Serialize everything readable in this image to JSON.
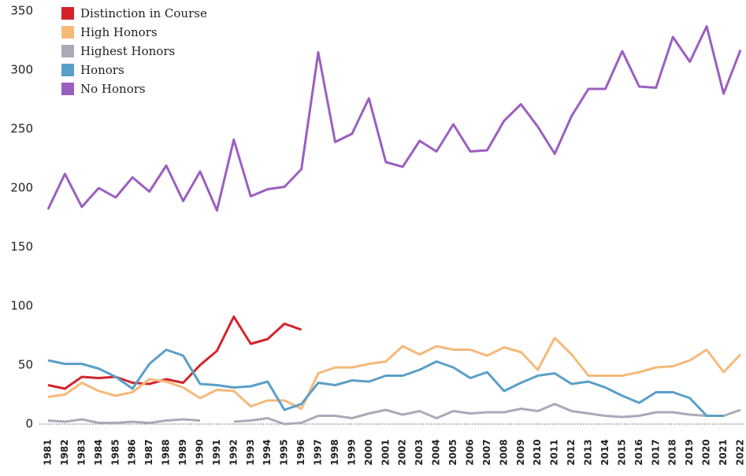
{
  "chart_data": {
    "type": "line",
    "categories": [
      "1981",
      "1982",
      "1983",
      "1984",
      "1985",
      "1986",
      "1987",
      "1988",
      "1989",
      "1990",
      "1991",
      "1992",
      "1993",
      "1994",
      "1995",
      "1996",
      "1997",
      "1998",
      "1999",
      "2000",
      "2001",
      "2002",
      "2003",
      "2004",
      "2005",
      "2006",
      "2007",
      "2008",
      "2009",
      "2010",
      "2011",
      "2012",
      "2013",
      "2014",
      "2015",
      "2016",
      "2017",
      "2018",
      "2019",
      "2020",
      "2021",
      "2022"
    ],
    "series": [
      {
        "name": "Distinction in Course",
        "color": "#d4232b",
        "values": [
          33,
          30,
          40,
          39,
          40,
          35,
          34,
          38,
          35,
          50,
          62,
          91,
          68,
          72,
          85,
          80,
          null,
          null,
          null,
          null,
          null,
          null,
          null,
          null,
          null,
          null,
          null,
          null,
          null,
          null,
          null,
          null,
          null,
          null,
          null,
          null,
          null,
          null,
          null,
          null,
          null,
          null
        ]
      },
      {
        "name": "High Honors",
        "color": "#f5b97a",
        "values": [
          23,
          25,
          35,
          28,
          24,
          27,
          38,
          36,
          31,
          22,
          29,
          28,
          15,
          20,
          20,
          13,
          43,
          48,
          48,
          51,
          53,
          66,
          59,
          66,
          63,
          63,
          58,
          65,
          61,
          46,
          73,
          59,
          41,
          41,
          41,
          44,
          48,
          49,
          54,
          63,
          44,
          59
        ]
      },
      {
        "name": "Highest Honors",
        "color": "#a9aab8",
        "values": [
          3,
          2,
          4,
          1,
          1,
          2,
          1,
          3,
          4,
          3,
          null,
          2,
          3,
          5,
          0,
          1,
          7,
          7,
          5,
          9,
          12,
          8,
          11,
          5,
          11,
          9,
          10,
          10,
          13,
          11,
          17,
          11,
          9,
          7,
          6,
          7,
          10,
          10,
          8,
          7,
          7,
          12
        ]
      },
      {
        "name": "Honors",
        "color": "#5a9fc8",
        "values": [
          54,
          51,
          51,
          47,
          40,
          30,
          51,
          63,
          58,
          34,
          33,
          31,
          32,
          36,
          12,
          17,
          35,
          33,
          37,
          36,
          41,
          41,
          46,
          53,
          48,
          39,
          44,
          28,
          35,
          41,
          43,
          34,
          36,
          31,
          24,
          18,
          27,
          27,
          22,
          7,
          7,
          null
        ]
      },
      {
        "name": "No Honors",
        "color": "#9b5fc0",
        "values": [
          182,
          212,
          184,
          200,
          192,
          209,
          197,
          219,
          189,
          214,
          181,
          241,
          193,
          199,
          201,
          216,
          315,
          239,
          246,
          276,
          222,
          218,
          240,
          231,
          254,
          231,
          232,
          257,
          271,
          252,
          229,
          261,
          284,
          284,
          316,
          286,
          285,
          328,
          307,
          337,
          280,
          317
        ]
      }
    ],
    "ylim": [
      0,
      350
    ],
    "yticks": [
      0,
      50,
      100,
      150,
      200,
      250,
      300,
      350
    ],
    "legend": "top-left",
    "grid": false
  }
}
